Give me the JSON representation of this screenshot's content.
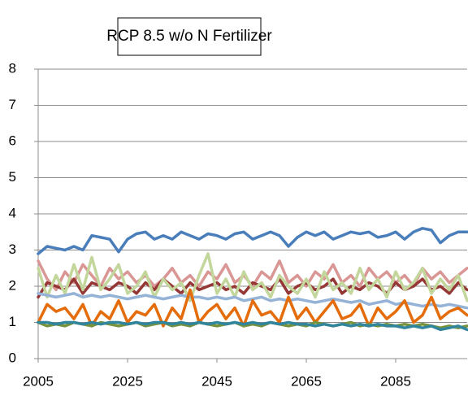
{
  "chart_data": {
    "type": "line",
    "title": "RCP 8.5 w/o N Fertilizer",
    "x": [
      2005,
      2007,
      2009,
      2011,
      2013,
      2015,
      2017,
      2019,
      2021,
      2023,
      2025,
      2027,
      2029,
      2031,
      2033,
      2035,
      2037,
      2039,
      2041,
      2043,
      2045,
      2047,
      2049,
      2051,
      2053,
      2055,
      2057,
      2059,
      2061,
      2063,
      2065,
      2067,
      2069,
      2071,
      2073,
      2075,
      2077,
      2079,
      2081,
      2083,
      2085,
      2087,
      2089,
      2091,
      2093,
      2095,
      2097,
      2099,
      2101
    ],
    "xlim": [
      2005,
      2101
    ],
    "xticks": [
      2005,
      2025,
      2045,
      2065,
      2085
    ],
    "ylim": [
      0,
      8
    ],
    "yticks": [
      0,
      1,
      2,
      3,
      4,
      5,
      6,
      7,
      8
    ],
    "grid": true,
    "series": [
      {
        "color": "#4a7ebb",
        "values": [
          2.9,
          3.1,
          3.05,
          3.0,
          3.1,
          3.0,
          3.4,
          3.35,
          3.3,
          2.95,
          3.3,
          3.45,
          3.5,
          3.3,
          3.4,
          3.3,
          3.5,
          3.4,
          3.3,
          3.45,
          3.4,
          3.3,
          3.45,
          3.5,
          3.3,
          3.4,
          3.5,
          3.4,
          3.1,
          3.35,
          3.5,
          3.4,
          3.5,
          3.3,
          3.4,
          3.5,
          3.45,
          3.5,
          3.35,
          3.4,
          3.5,
          3.3,
          3.5,
          3.6,
          3.55,
          3.2,
          3.4,
          3.5,
          3.5
        ]
      },
      {
        "color": "#d99694",
        "values": [
          2.7,
          2.2,
          1.9,
          2.4,
          2.1,
          2.6,
          2.3,
          2.0,
          2.5,
          2.2,
          2.4,
          2.1,
          2.3,
          2.0,
          2.2,
          2.5,
          2.1,
          2.3,
          2.0,
          2.4,
          2.2,
          2.6,
          2.1,
          2.3,
          2.0,
          2.4,
          2.2,
          2.7,
          2.1,
          2.3,
          2.0,
          2.4,
          2.2,
          2.6,
          2.1,
          2.3,
          2.0,
          2.5,
          2.2,
          2.4,
          2.1,
          2.3,
          2.0,
          2.5,
          2.2,
          2.4,
          2.1,
          2.3,
          2.5
        ]
      },
      {
        "color": "#953735",
        "values": [
          1.7,
          2.1,
          2.0,
          1.9,
          2.2,
          1.8,
          2.1,
          2.0,
          1.9,
          2.1,
          2.0,
          1.8,
          2.1,
          1.9,
          2.2,
          2.0,
          1.8,
          2.1,
          1.9,
          2.0,
          2.1,
          1.9,
          2.0,
          1.8,
          2.1,
          2.0,
          1.9,
          2.2,
          1.8,
          2.0,
          2.1,
          1.9,
          2.0,
          2.2,
          1.8,
          2.0,
          1.9,
          2.1,
          2.0,
          1.8,
          2.1,
          1.9,
          2.0,
          2.2,
          1.9,
          2.0,
          1.8,
          2.1,
          1.9
        ]
      },
      {
        "color": "#c3d69b",
        "values": [
          2.5,
          1.7,
          2.3,
          1.8,
          2.6,
          1.9,
          2.8,
          1.9,
          2.2,
          2.6,
          1.8,
          2.0,
          2.4,
          1.7,
          2.2,
          1.9,
          2.1,
          1.6,
          2.3,
          2.9,
          1.8,
          2.2,
          1.7,
          2.4,
          1.9,
          2.1,
          1.7,
          2.3,
          2.0,
          1.8,
          2.2,
          1.7,
          2.4,
          1.9,
          2.1,
          1.8,
          2.5,
          1.9,
          2.2,
          1.7,
          2.4,
          1.9,
          2.1,
          2.5,
          1.8,
          2.2,
          1.9,
          2.3,
          1.6
        ]
      },
      {
        "color": "#95b3d7",
        "values": [
          1.8,
          1.75,
          1.7,
          1.75,
          1.8,
          1.7,
          1.75,
          1.7,
          1.75,
          1.7,
          1.65,
          1.7,
          1.75,
          1.7,
          1.65,
          1.7,
          1.75,
          1.7,
          1.7,
          1.65,
          1.7,
          1.65,
          1.7,
          1.6,
          1.65,
          1.7,
          1.6,
          1.65,
          1.6,
          1.65,
          1.6,
          1.55,
          1.6,
          1.65,
          1.6,
          1.55,
          1.6,
          1.5,
          1.55,
          1.6,
          1.5,
          1.55,
          1.5,
          1.45,
          1.5,
          1.45,
          1.5,
          1.45,
          1.4
        ]
      },
      {
        "color": "#e46c0a",
        "values": [
          1.0,
          1.5,
          1.3,
          1.4,
          1.1,
          1.5,
          0.9,
          1.3,
          1.1,
          1.6,
          1.0,
          1.3,
          1.2,
          1.5,
          0.9,
          1.4,
          1.1,
          1.9,
          1.0,
          1.3,
          1.5,
          1.1,
          1.4,
          0.9,
          1.6,
          1.2,
          1.3,
          1.0,
          1.7,
          1.1,
          1.4,
          1.0,
          1.3,
          1.6,
          1.1,
          1.2,
          1.5,
          0.9,
          1.4,
          1.1,
          1.3,
          1.6,
          1.0,
          1.2,
          1.7,
          1.1,
          1.3,
          1.4,
          1.2
        ]
      },
      {
        "color": "#77933c",
        "values": [
          1.0,
          0.9,
          0.95,
          0.9,
          1.0,
          0.95,
          0.9,
          1.0,
          0.95,
          0.9,
          0.95,
          1.0,
          0.9,
          0.95,
          1.0,
          0.9,
          0.95,
          0.9,
          1.0,
          0.95,
          0.9,
          0.95,
          1.0,
          0.9,
          0.95,
          0.9,
          1.0,
          0.95,
          0.9,
          0.95,
          0.9,
          1.0,
          0.95,
          0.9,
          0.95,
          1.0,
          0.9,
          0.95,
          0.9,
          0.95,
          0.9,
          0.95,
          0.9,
          0.95,
          0.9,
          0.85,
          0.9,
          0.85,
          0.9
        ]
      },
      {
        "color": "#31859c",
        "values": [
          1.0,
          1.0,
          0.95,
          1.0,
          1.0,
          0.95,
          1.0,
          0.95,
          1.0,
          1.0,
          0.95,
          1.0,
          0.95,
          1.0,
          1.0,
          0.95,
          1.0,
          0.95,
          1.0,
          0.95,
          1.0,
          0.95,
          1.0,
          0.95,
          1.0,
          0.95,
          1.0,
          0.95,
          1.0,
          0.95,
          0.95,
          0.9,
          0.95,
          0.9,
          0.95,
          0.9,
          0.95,
          0.9,
          0.95,
          0.9,
          0.9,
          0.85,
          0.9,
          0.85,
          0.9,
          0.8,
          0.85,
          0.9,
          0.8
        ]
      }
    ]
  }
}
